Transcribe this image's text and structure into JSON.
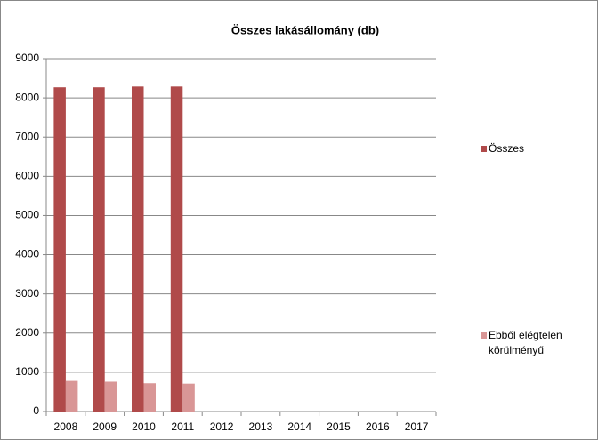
{
  "chart_data": {
    "type": "bar",
    "title": "Összes lakásállomány (db)",
    "categories": [
      "2008",
      "2009",
      "2010",
      "2011",
      "2012",
      "2013",
      "2014",
      "2015",
      "2016",
      "2017"
    ],
    "series": [
      {
        "name": "Összes",
        "color": "#b04a4a",
        "values": [
          8270,
          8270,
          8290,
          8290,
          null,
          null,
          null,
          null,
          null,
          null
        ]
      },
      {
        "name": "Ebből elégtelen körülményű",
        "color": "#d99696",
        "values": [
          780,
          760,
          720,
          710,
          null,
          null,
          null,
          null,
          null,
          null
        ]
      }
    ],
    "ylim": [
      0,
      9000
    ],
    "yticks": [
      0,
      1000,
      2000,
      3000,
      4000,
      5000,
      6000,
      7000,
      8000,
      9000
    ],
    "grid": true,
    "legend": "right"
  }
}
